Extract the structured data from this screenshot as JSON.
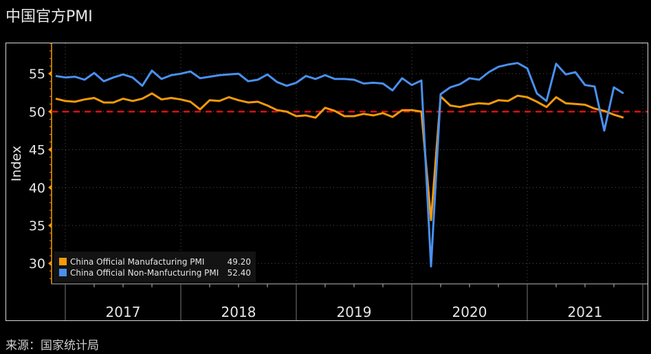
{
  "title": "中国官方PMI",
  "source": "来源：国家统计局",
  "chart_data": {
    "type": "line",
    "title": "中国官方PMI",
    "xlabel": "",
    "ylabel": "Index",
    "ylim": [
      27.3,
      59
    ],
    "yticks": [
      30,
      35,
      40,
      45,
      50,
      55
    ],
    "year_labels": [
      "2017",
      "2018",
      "2019",
      "2020",
      "2021"
    ],
    "x_start": "2016-11",
    "x_end": "2021-10",
    "reference_line": {
      "value": 50,
      "color": "#e01010",
      "style": "dashed"
    },
    "legend_position": "bottom-left",
    "series": [
      {
        "name": "China Official Manufacturing PMI",
        "last": "49.20",
        "color": "#f59a0a",
        "values": [
          51.7,
          51.4,
          51.3,
          51.6,
          51.8,
          51.2,
          51.2,
          51.7,
          51.4,
          51.7,
          52.4,
          51.6,
          51.8,
          51.6,
          51.3,
          50.3,
          51.5,
          51.4,
          51.9,
          51.5,
          51.2,
          51.3,
          50.8,
          50.2,
          50.0,
          49.4,
          49.5,
          49.2,
          50.5,
          50.1,
          49.4,
          49.4,
          49.7,
          49.5,
          49.8,
          49.3,
          50.2,
          50.2,
          50.0,
          35.7,
          52.0,
          50.8,
          50.6,
          50.9,
          51.1,
          51.0,
          51.5,
          51.4,
          52.1,
          51.9,
          51.3,
          50.6,
          51.9,
          51.1,
          51.0,
          50.9,
          50.4,
          50.1,
          49.6,
          49.2
        ]
      },
      {
        "name": "China Official Non-Manfucturing PMI",
        "last": "52.40",
        "color": "#4a90f0",
        "values": [
          54.7,
          54.5,
          54.6,
          54.2,
          55.1,
          54.0,
          54.5,
          54.9,
          54.5,
          53.4,
          55.4,
          54.3,
          54.8,
          55.0,
          55.3,
          54.4,
          54.6,
          54.8,
          54.9,
          55.0,
          54.0,
          54.2,
          54.9,
          53.9,
          53.4,
          53.8,
          54.7,
          54.3,
          54.8,
          54.3,
          54.3,
          54.2,
          53.7,
          53.8,
          53.7,
          52.8,
          54.4,
          53.5,
          54.1,
          29.6,
          52.3,
          53.2,
          53.6,
          54.4,
          54.2,
          55.2,
          55.9,
          56.2,
          56.4,
          55.7,
          52.4,
          51.4,
          56.3,
          54.9,
          55.2,
          53.5,
          53.3,
          47.5,
          53.2,
          52.4
        ]
      }
    ]
  }
}
